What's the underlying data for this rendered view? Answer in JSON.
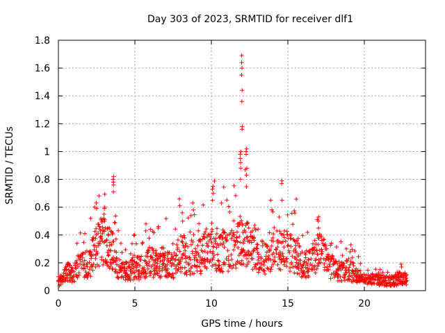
{
  "chart_data": {
    "type": "scatter",
    "title": "Day 303 of 2023, SRMTID for receiver dlf1",
    "xlabel": "GPS time / hours",
    "ylabel": "SRMTID / TECUs",
    "xlim": [
      0,
      24
    ],
    "ylim": [
      0,
      1.8
    ],
    "xticks": [
      0,
      5,
      10,
      15,
      20
    ],
    "xtick_labels": [
      "0",
      "5",
      "10",
      "15",
      "20"
    ],
    "yticks": [
      0,
      0.2,
      0.4,
      0.6,
      0.8,
      1,
      1.2,
      1.4,
      1.6,
      1.8
    ],
    "ytick_labels": [
      "0",
      "0.2",
      "0.4",
      "0.6",
      "0.8",
      "1",
      "1.2",
      "1.4",
      "1.6",
      "1.8"
    ],
    "grid": true,
    "marker": "+",
    "series": [
      {
        "name": "SRMTID",
        "color": "#ff0000",
        "profile_x": [
          0.0,
          0.3,
          0.6,
          1.0,
          1.5,
          2.0,
          2.5,
          3.0,
          3.5,
          4.0,
          4.5,
          5.0,
          5.5,
          6.0,
          6.5,
          7.0,
          7.5,
          8.0,
          8.5,
          9.0,
          9.5,
          10.0,
          10.5,
          11.0,
          11.5,
          12.0,
          12.5,
          13.0,
          13.5,
          14.0,
          14.5,
          15.0,
          15.5,
          16.0,
          16.5,
          17.0,
          17.5,
          18.0,
          18.5,
          19.0,
          19.5,
          20.0,
          20.5,
          21.0,
          21.5,
          22.0,
          22.5,
          22.8
        ],
        "profile_y": [
          0.07,
          0.09,
          0.15,
          0.12,
          0.22,
          0.2,
          0.33,
          0.38,
          0.3,
          0.16,
          0.14,
          0.18,
          0.17,
          0.22,
          0.2,
          0.21,
          0.18,
          0.3,
          0.24,
          0.22,
          0.3,
          0.34,
          0.28,
          0.3,
          0.32,
          0.36,
          0.34,
          0.3,
          0.26,
          0.28,
          0.32,
          0.3,
          0.26,
          0.2,
          0.22,
          0.3,
          0.24,
          0.16,
          0.14,
          0.16,
          0.12,
          0.08,
          0.09,
          0.08,
          0.07,
          0.08,
          0.09,
          0.08
        ],
        "peaks": [
          {
            "x": 3.6,
            "y": [
              0.71,
              0.76,
              0.78,
              0.8,
              0.82
            ]
          },
          {
            "x": 3.0,
            "y": [
              0.55,
              0.59,
              0.6
            ]
          },
          {
            "x": 2.5,
            "y": [
              0.59,
              0.63
            ]
          },
          {
            "x": 5.7,
            "y": [
              0.43,
              0.48
            ]
          },
          {
            "x": 8.1,
            "y": [
              0.5,
              0.56
            ]
          },
          {
            "x": 8.8,
            "y": [
              0.58,
              0.63
            ]
          },
          {
            "x": 10.1,
            "y": [
              0.65,
              0.7,
              0.73,
              0.75
            ]
          },
          {
            "x": 11.9,
            "y": [
              0.8,
              0.88,
              0.92,
              0.95,
              0.98,
              1.0
            ]
          },
          {
            "x": 12.0,
            "y": [
              1.16,
              1.18,
              1.36,
              1.44,
              1.55,
              1.6,
              1.64,
              1.69
            ]
          },
          {
            "x": 12.3,
            "y": [
              0.83,
              0.88,
              0.98,
              1.0,
              1.02
            ]
          },
          {
            "x": 14.6,
            "y": [
              0.65,
              0.77,
              0.79
            ]
          },
          {
            "x": 17.0,
            "y": [
              0.45,
              0.5,
              0.53
            ]
          },
          {
            "x": 19.1,
            "y": [
              0.28,
              0.33
            ]
          },
          {
            "x": 22.4,
            "y": [
              0.17,
              0.19
            ]
          }
        ]
      }
    ]
  }
}
